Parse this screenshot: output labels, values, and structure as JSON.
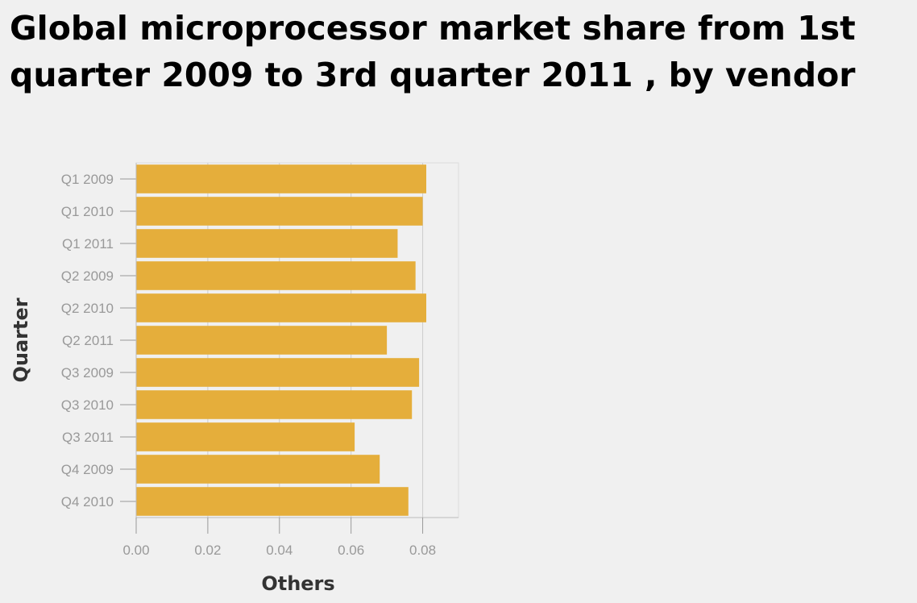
{
  "chart_data": {
    "type": "bar",
    "orientation": "horizontal",
    "title": "Global microprocessor market share from 1st quarter 2009 to 3rd quarter 2011 , by vendor",
    "xlabel": "Others",
    "ylabel": "Quarter",
    "categories": [
      "Q1 2009",
      "Q1 2010",
      "Q1 2011",
      "Q2 2009",
      "Q2 2010",
      "Q2 2011",
      "Q3 2009",
      "Q3 2010",
      "Q3 2011",
      "Q4 2009",
      "Q4 2010"
    ],
    "values": [
      0.081,
      0.08,
      0.073,
      0.078,
      0.081,
      0.07,
      0.079,
      0.077,
      0.061,
      0.068,
      0.076
    ],
    "xlim": [
      0,
      0.09
    ],
    "xticks": [
      "0.00",
      "0.02",
      "0.04",
      "0.06",
      "0.08"
    ],
    "xtick_values": [
      0,
      0.02,
      0.04,
      0.06,
      0.08
    ],
    "bar_color": "#e5ae3b",
    "grid": true,
    "legend": "none"
  }
}
